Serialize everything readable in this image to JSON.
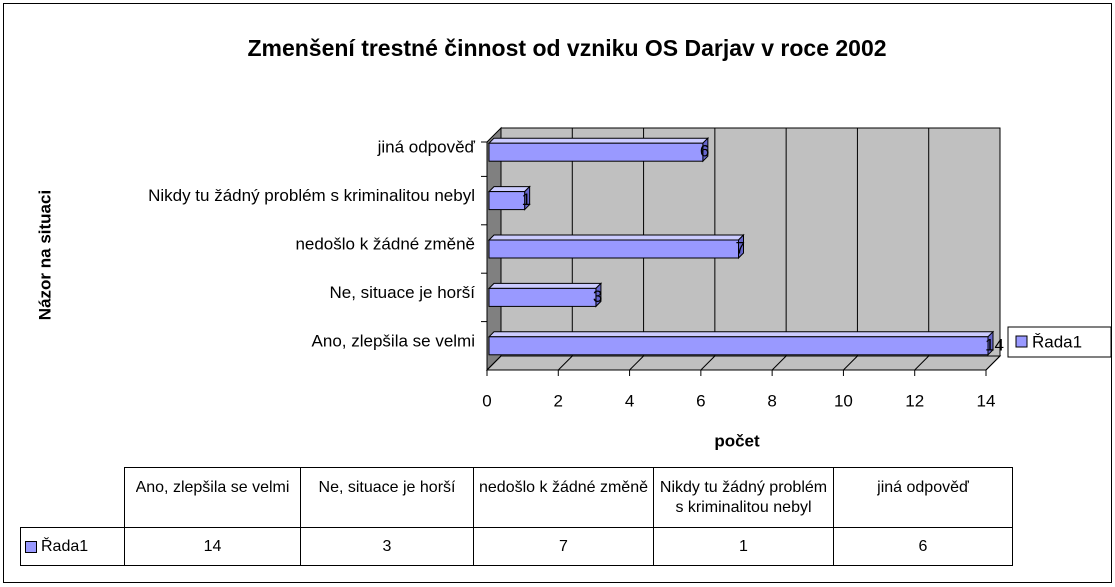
{
  "chart_data": {
    "type": "bar",
    "orientation": "horizontal",
    "title": "Zmenšení trestné činnost od vzniku OS Darjav v roce 2002",
    "x_label": "počet",
    "y_label": "Názor na situaci",
    "categories": [
      "Ano, zlepšila se velmi",
      "Ne, situace je horší",
      "nedošlo k žádné změně",
      "Nikdy tu žádný problém s kriminalitou nebyl",
      "jiná odpověď"
    ],
    "series": [
      {
        "name": "Řada1",
        "color": "#9999ff",
        "values": [
          14,
          3,
          7,
          1,
          6
        ]
      }
    ],
    "xlim": [
      0,
      14
    ],
    "xticks": [
      0,
      2,
      4,
      6,
      8,
      10,
      12,
      14
    ],
    "grid": true,
    "legend": "right",
    "data_table": true
  }
}
